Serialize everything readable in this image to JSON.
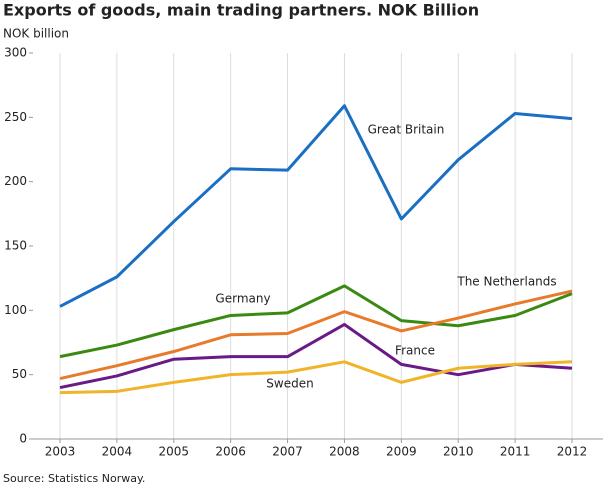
{
  "chart_data": {
    "type": "line",
    "title": "Exports of goods, main trading partners. NOK Billion",
    "y_label": "NOK billion",
    "source": "Source: Statistics Norway.",
    "categories": [
      "2003",
      "2004",
      "2005",
      "2006",
      "2007",
      "2008",
      "2009",
      "2010",
      "2011",
      "2012"
    ],
    "series": [
      {
        "name": "Great Britain",
        "color": "#1a6fc4",
        "values": [
          103,
          126,
          169,
          210,
          209,
          259,
          171,
          217,
          253,
          249
        ]
      },
      {
        "name": "Germany",
        "color": "#3a8a12",
        "values": [
          64,
          73,
          85,
          96,
          98,
          119,
          92,
          88,
          96,
          113
        ]
      },
      {
        "name": "The Netherlands",
        "color": "#e87a2c",
        "values": [
          47,
          57,
          68,
          81,
          82,
          99,
          84,
          94,
          105,
          115
        ]
      },
      {
        "name": "France",
        "color": "#6a1a87",
        "values": [
          40,
          49,
          62,
          64,
          64,
          89,
          58,
          50,
          58,
          55
        ]
      },
      {
        "name": "Sweden",
        "color": "#f0b429",
        "values": [
          36,
          37,
          44,
          50,
          52,
          60,
          44,
          55,
          58,
          60
        ]
      }
    ],
    "ylim": [
      0,
      300
    ],
    "yticks": [
      0,
      50,
      100,
      150,
      200,
      250,
      300
    ],
    "grid": true
  }
}
